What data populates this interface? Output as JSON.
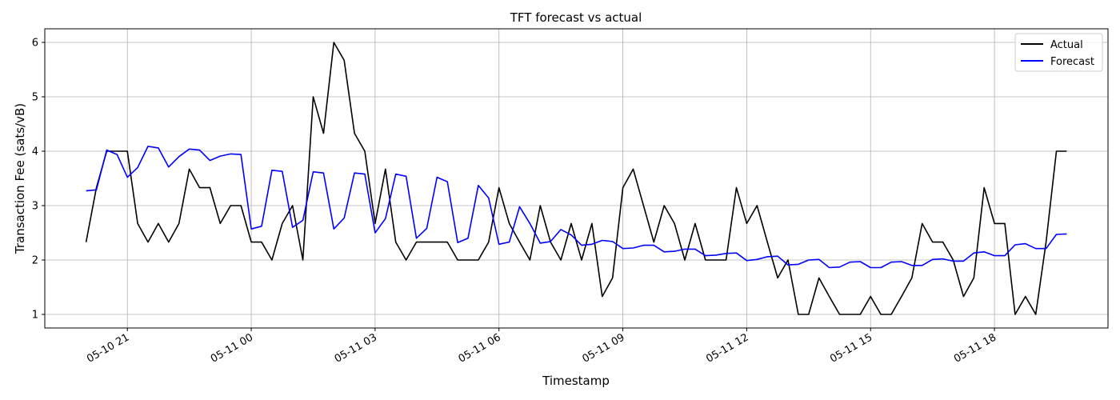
{
  "chart_data": {
    "type": "line",
    "title": "TFT forecast vs actual",
    "xlabel": "Timestamp",
    "ylabel": "Transaction Fee (sats/vB)",
    "ylim": [
      0.75,
      6.25
    ],
    "xlim": [
      "2025-05-10T19:00",
      "2025-05-11T20:45"
    ],
    "grid": true,
    "legend_position": "top-right",
    "xticks": [
      {
        "at": "2025-05-10T21:00",
        "label": "05-10 21"
      },
      {
        "at": "2025-05-11T00:00",
        "label": "05-11 00"
      },
      {
        "at": "2025-05-11T03:00",
        "label": "05-11 03"
      },
      {
        "at": "2025-05-11T06:00",
        "label": "05-11 06"
      },
      {
        "at": "2025-05-11T09:00",
        "label": "05-11 09"
      },
      {
        "at": "2025-05-11T12:00",
        "label": "05-11 12"
      },
      {
        "at": "2025-05-11T15:00",
        "label": "05-11 15"
      },
      {
        "at": "2025-05-11T18:00",
        "label": "05-11 18"
      }
    ],
    "yticks": [
      1,
      2,
      3,
      4,
      5,
      6
    ],
    "x_start": "2025-05-10T20:00",
    "x_step_minutes": 15,
    "series": [
      {
        "name": "Actual",
        "color": "#000000",
        "values": [
          2.33,
          3.33,
          4.0,
          4.0,
          4.0,
          2.67,
          2.33,
          2.67,
          2.33,
          2.67,
          3.67,
          3.33,
          3.33,
          2.67,
          3.0,
          3.0,
          2.33,
          2.33,
          2.0,
          2.67,
          3.0,
          2.0,
          5.0,
          4.33,
          6.0,
          5.67,
          4.33,
          4.0,
          2.67,
          3.67,
          2.33,
          2.0,
          2.33,
          2.33,
          2.33,
          2.33,
          2.0,
          2.0,
          2.0,
          2.33,
          3.33,
          2.67,
          2.33,
          2.0,
          3.0,
          2.33,
          2.0,
          2.67,
          2.0,
          2.67,
          1.33,
          1.67,
          3.33,
          3.67,
          3.0,
          2.33,
          3.0,
          2.67,
          2.0,
          2.67,
          2.0,
          2.0,
          2.0,
          3.33,
          2.67,
          3.0,
          2.33,
          1.67,
          2.0,
          1.0,
          1.0,
          1.67,
          1.33,
          1.0,
          1.0,
          1.0,
          1.33,
          1.0,
          1.0,
          1.33,
          1.67,
          2.67,
          2.33,
          2.33,
          2.0,
          1.33,
          1.67,
          3.33,
          2.67,
          2.67,
          1.0,
          1.33,
          1.0,
          2.33,
          4.0,
          4.0
        ]
      },
      {
        "name": "Forecast",
        "color": "#0000ff",
        "values": [
          3.27,
          3.29,
          4.02,
          3.94,
          3.52,
          3.7,
          4.09,
          4.06,
          3.71,
          3.9,
          4.04,
          4.02,
          3.83,
          3.91,
          3.95,
          3.94,
          2.57,
          2.62,
          3.65,
          3.63,
          2.6,
          2.73,
          3.62,
          3.6,
          2.57,
          2.77,
          3.6,
          3.58,
          2.5,
          2.76,
          3.58,
          3.54,
          2.4,
          2.58,
          3.52,
          3.44,
          2.32,
          2.4,
          3.37,
          3.14,
          2.29,
          2.33,
          2.98,
          2.67,
          2.31,
          2.34,
          2.56,
          2.46,
          2.27,
          2.29,
          2.36,
          2.34,
          2.21,
          2.22,
          2.27,
          2.27,
          2.15,
          2.16,
          2.2,
          2.2,
          2.08,
          2.09,
          2.12,
          2.13,
          1.99,
          2.01,
          2.06,
          2.07,
          1.91,
          1.92,
          2.0,
          2.01,
          1.86,
          1.87,
          1.96,
          1.97,
          1.86,
          1.86,
          1.96,
          1.97,
          1.9,
          1.9,
          2.01,
          2.02,
          1.98,
          1.98,
          2.13,
          2.15,
          2.08,
          2.08,
          2.28,
          2.3,
          2.21,
          2.21,
          2.47,
          2.48
        ]
      }
    ]
  }
}
